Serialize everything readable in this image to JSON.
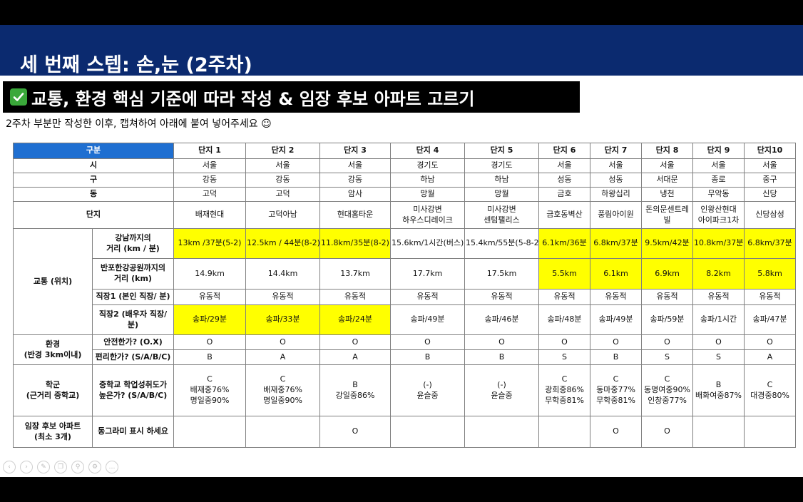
{
  "slide": {
    "title": "세 번째 스텝: 손,눈 (2주차)",
    "subtitle": "교통, 환경 핵심 기준에 따라 작성 & 임장 후보 아파트 고르기",
    "instruction": "2주차 부분만 작성한 이후, 캡쳐하여 아래에 붙여 넣어주세요 ☺"
  },
  "table": {
    "header": {
      "label": "구분",
      "columns": [
        "단지 1",
        "단지 2",
        "단지 3",
        "단지 4",
        "단지 5",
        "단지 6",
        "단지 7",
        "단지 8",
        "단지 9",
        "단지10"
      ]
    },
    "basic_rows": [
      {
        "label": "시",
        "values": [
          "서울",
          "서울",
          "서울",
          "경기도",
          "경기도",
          "서울",
          "서울",
          "서울",
          "서울",
          "서울"
        ]
      },
      {
        "label": "구",
        "values": [
          "강동",
          "강동",
          "강동",
          "하남",
          "하남",
          "성동",
          "성동",
          "서대문",
          "종로",
          "중구"
        ]
      },
      {
        "label": "동",
        "values": [
          "고덕",
          "고덕",
          "암사",
          "망월",
          "망월",
          "금호",
          "하왕십리",
          "냉천",
          "무악동",
          "신당"
        ]
      },
      {
        "label": "단지",
        "values": [
          "배재현대",
          "고덕아남",
          "현대홈타운",
          "미사강변\n하우스디레이크",
          "미사강변\n센텀팰리스",
          "금호동벽산",
          "풍림아이원",
          "돈의문센트레빌",
          "인왕산현대\n아이파크1차",
          "신당삼성"
        ]
      }
    ],
    "transport": {
      "group_label": "교통 (위치)",
      "rows": [
        {
          "label": "강남까지의\n거리 (km / 분)",
          "values": [
            "13km /37분(5-2)",
            "12.5km / 44분(8-2)",
            "11.8km/35분(8-2)",
            "15.6km/1시간(버스)",
            "15.4km/55분(5-8-2)",
            "6.1km/36분",
            "6.8km/37분",
            "9.5km/42분",
            "10.8km/37분",
            "6.8km/37분"
          ]
        },
        {
          "label": "반포한강공원까지의\n거리 (km)",
          "values": [
            "14.9km",
            "14.4km",
            "13.7km",
            "17.7km",
            "17.5km",
            "5.5km",
            "6.1km",
            "6.9km",
            "8.2km",
            "5.8km"
          ]
        },
        {
          "label": "직장1 (본인 직장/ 분)",
          "values": [
            "유동적",
            "유동적",
            "유동적",
            "유동적",
            "유동적",
            "유동적",
            "유동적",
            "유동적",
            "유동적",
            "유동적"
          ]
        },
        {
          "label": "직장2 (배우자 직장/\n분)",
          "values": [
            "송파/29분",
            "송파/33분",
            "송파/24분",
            "송파/49분",
            "송파/46분",
            "송파/48분",
            "송파/49분",
            "송파/59분",
            "송파/1시간",
            "송파/47분"
          ]
        }
      ]
    },
    "environment": {
      "group_label": "환경\n(반경 3km이내)",
      "rows": [
        {
          "label": "안전한가? (O.X)",
          "values": [
            "O",
            "O",
            "O",
            "O",
            "O",
            "O",
            "O",
            "O",
            "O",
            "O"
          ]
        },
        {
          "label": "편리한가? (S/A/B/C)",
          "values": [
            "B",
            "A",
            "A",
            "B",
            "B",
            "S",
            "B",
            "S",
            "S",
            "A"
          ]
        }
      ]
    },
    "school": {
      "group_label": "학군\n(근거리 중학교)",
      "label": "중학교 학업성취도가\n높은가? (S/A/B/C)",
      "values": [
        "C\n배재중76%\n명일중90%",
        "C\n배재중76%\n명일중90%",
        "B\n강일중86%",
        "(-)\n윤슬중",
        "(-)\n윤슬중",
        "C\n광희중86%\n무학중81%",
        "C\n동마중77%\n무학중81%",
        "C\n동명여중90%\n인창중77%",
        "B\n배화여중87%",
        "C\n대경중80%"
      ]
    },
    "candidate": {
      "group_label": "임장 후보 아파트\n(최소 3개)",
      "label": "동그라미 표시 하세요",
      "values": [
        "",
        "",
        "O",
        "",
        "",
        "",
        "O",
        "O",
        "",
        ""
      ]
    },
    "highlight_color": "#ffff00",
    "header_color": "#1f6fd1"
  },
  "colors": {
    "title_band": "#0b2a6f",
    "check_icon": "#3aa83a"
  },
  "nav_icons": [
    "prev-icon",
    "next-icon",
    "pen-icon",
    "copy-icon",
    "zoom-icon",
    "settings-icon",
    "more-icon"
  ]
}
